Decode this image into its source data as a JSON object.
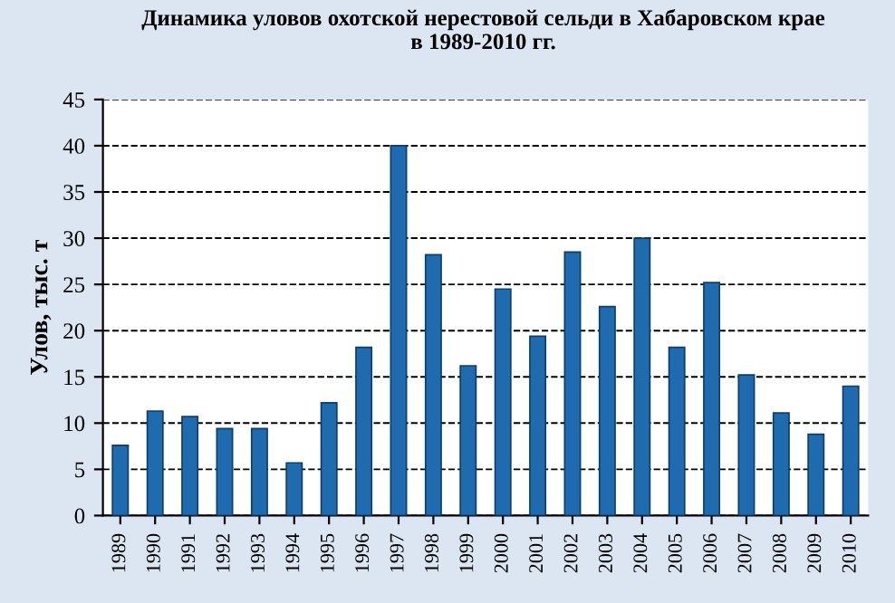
{
  "chart_data": {
    "type": "bar",
    "title": "Динамика уловов охотской нерестовой сельди в Хабаровском крае\nв 1989-2010 гг.",
    "ylabel": "Улов, тыс. т",
    "categories": [
      "1989",
      "1990",
      "1991",
      "1992",
      "1993",
      "1994",
      "1995",
      "1996",
      "1997",
      "1998",
      "1999",
      "2000",
      "2001",
      "2002",
      "2003",
      "2004",
      "2005",
      "2006",
      "2007",
      "2008",
      "2009",
      "2010"
    ],
    "values": [
      7.6,
      11.3,
      10.7,
      9.4,
      9.4,
      5.7,
      12.2,
      18.2,
      40,
      28.2,
      16.2,
      24.5,
      19.4,
      28.5,
      22.6,
      30,
      18.2,
      25.2,
      15.2,
      11.1,
      8.8,
      14
    ],
    "color": "#1f6bb0",
    "ylim": [
      0,
      45
    ],
    "yticks": [
      0,
      5,
      10,
      15,
      20,
      25,
      30,
      35,
      40,
      45
    ],
    "grid": "y"
  }
}
